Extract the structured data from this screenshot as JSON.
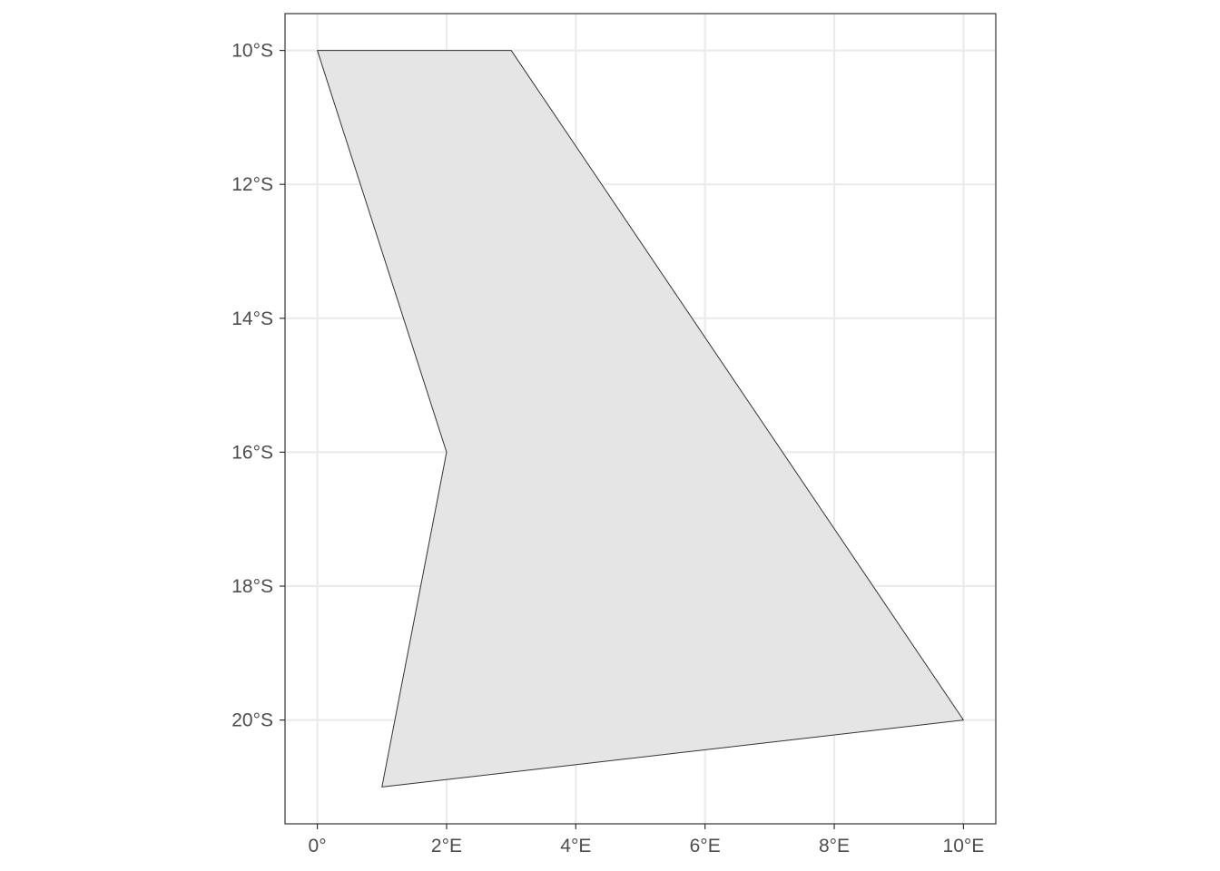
{
  "chart_data": {
    "type": "map",
    "title": "",
    "xlabel": "",
    "ylabel": "",
    "crs": "longitude/latitude (degrees)",
    "xlim": [
      -0.5,
      10.5
    ],
    "ylim": [
      -21.55,
      -9.45
    ],
    "x_ticks": [
      {
        "value": 0,
        "label": "0°"
      },
      {
        "value": 2,
        "label": "2°E"
      },
      {
        "value": 4,
        "label": "4°E"
      },
      {
        "value": 6,
        "label": "6°E"
      },
      {
        "value": 8,
        "label": "8°E"
      },
      {
        "value": 10,
        "label": "10°E"
      }
    ],
    "y_ticks": [
      {
        "value": -10,
        "label": "10°S"
      },
      {
        "value": -12,
        "label": "12°S"
      },
      {
        "value": -14,
        "label": "14°S"
      },
      {
        "value": -16,
        "label": "16°S"
      },
      {
        "value": -18,
        "label": "18°S"
      },
      {
        "value": -20,
        "label": "20°S"
      }
    ],
    "grid": true,
    "legend": "none",
    "polygon": {
      "vertices": [
        {
          "lon": 0,
          "lat": -10
        },
        {
          "lon": 3,
          "lat": -10
        },
        {
          "lon": 10,
          "lat": -20
        },
        {
          "lon": 1,
          "lat": -21
        },
        {
          "lon": 2,
          "lat": -16
        },
        {
          "lon": 0,
          "lat": -10
        }
      ]
    }
  },
  "colors": {
    "background": "#ffffff",
    "panel_border": "#333333",
    "grid": "#ebebeb",
    "polygon_fill": "#e5e5e5",
    "polygon_stroke": "#333333",
    "tick_text": "#4d4d4d",
    "tick_mark": "#333333"
  }
}
